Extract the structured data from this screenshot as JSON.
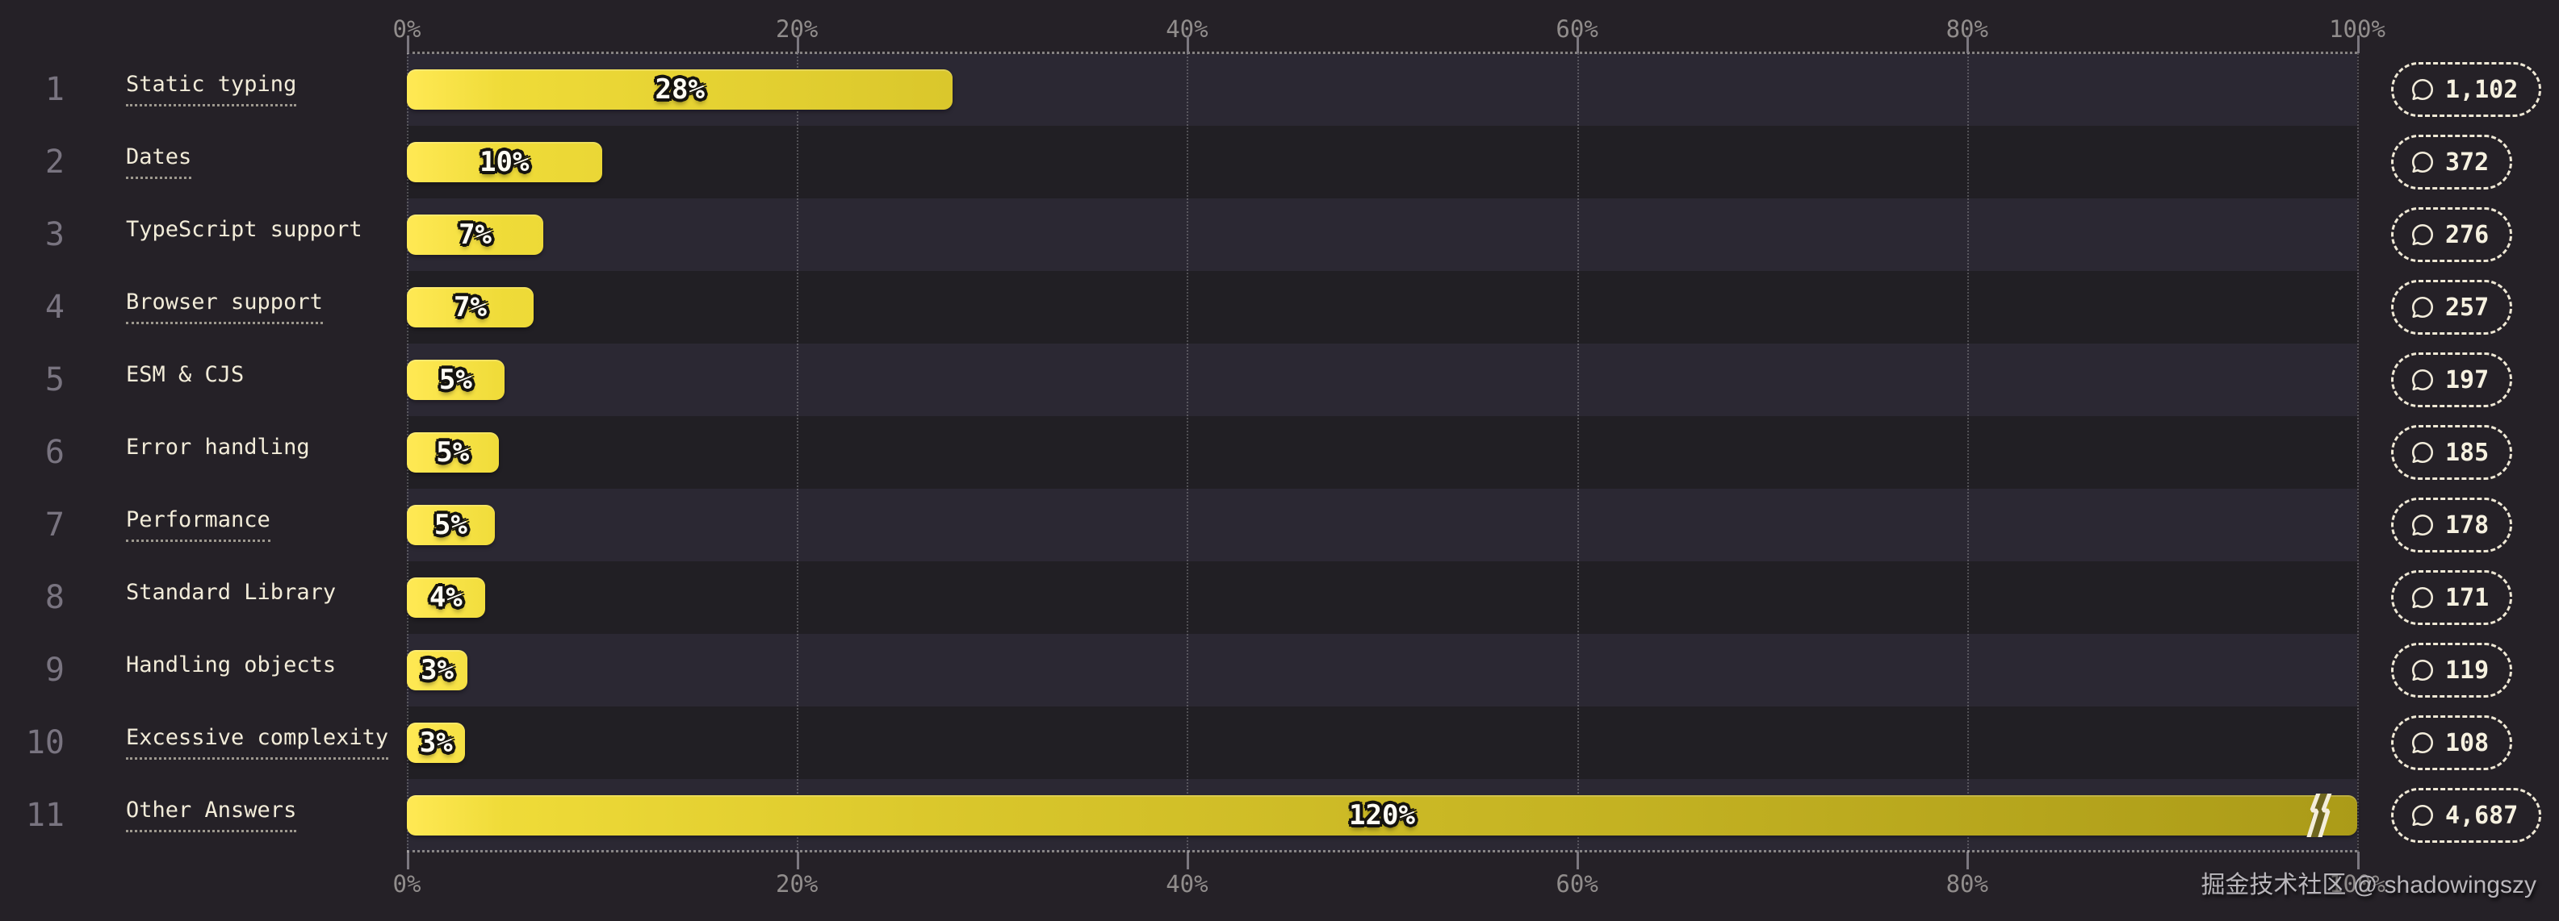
{
  "chart_data": {
    "type": "bar",
    "orientation": "horizontal",
    "title": "",
    "categories": [
      "Static typing",
      "Dates",
      "TypeScript support",
      "Browser support",
      "ESM & CJS",
      "Error handling",
      "Performance",
      "Standard Library",
      "Handling objects",
      "Excessive complexity",
      "Other Answers"
    ],
    "values": [
      28,
      10,
      7,
      7,
      5,
      5,
      5,
      4,
      3,
      3,
      120
    ],
    "value_labels": [
      "28%",
      "10%",
      "7%",
      "7%",
      "5%",
      "5%",
      "5%",
      "4%",
      "3%",
      "3%",
      "120%"
    ],
    "series": [
      {
        "name": "percentage",
        "values": [
          28,
          10,
          7,
          7,
          5,
          5,
          5,
          4,
          3,
          3,
          120
        ]
      },
      {
        "name": "respondent_count",
        "values": [
          1102,
          372,
          276,
          257,
          197,
          185,
          178,
          171,
          119,
          108,
          4687
        ]
      }
    ],
    "xlabel": "",
    "ylabel": "",
    "axis_ticks": [
      "0%",
      "20%",
      "40%",
      "60%",
      "80%",
      "100%"
    ],
    "xlim": [
      0,
      100
    ],
    "grid": "dotted vertical gridlines every 20%, dotted top and bottom axis lines",
    "legend_position": "none",
    "note": "last bar (120%) exceeds axis maximum and is truncated with a break mark"
  },
  "rows": [
    {
      "rank": "1",
      "label": "Static typing",
      "pct_label": "28%",
      "count": "1,102",
      "underlined": true,
      "bar_pct": 28,
      "truncated": false
    },
    {
      "rank": "2",
      "label": "Dates",
      "pct_label": "10%",
      "count": "372",
      "underlined": true,
      "bar_pct": 10,
      "truncated": false
    },
    {
      "rank": "3",
      "label": "TypeScript support",
      "pct_label": "7%",
      "count": "276",
      "underlined": false,
      "bar_pct": 7,
      "truncated": false
    },
    {
      "rank": "4",
      "label": "Browser support",
      "pct_label": "7%",
      "count": "257",
      "underlined": true,
      "bar_pct": 6.5,
      "truncated": false
    },
    {
      "rank": "5",
      "label": "ESM & CJS",
      "pct_label": "5%",
      "count": "197",
      "underlined": false,
      "bar_pct": 5,
      "truncated": false
    },
    {
      "rank": "6",
      "label": "Error handling",
      "pct_label": "5%",
      "count": "185",
      "underlined": false,
      "bar_pct": 4.7,
      "truncated": false
    },
    {
      "rank": "7",
      "label": "Performance",
      "pct_label": "5%",
      "count": "178",
      "underlined": true,
      "bar_pct": 4.5,
      "truncated": false
    },
    {
      "rank": "8",
      "label": "Standard Library",
      "pct_label": "4%",
      "count": "171",
      "underlined": false,
      "bar_pct": 4,
      "truncated": false
    },
    {
      "rank": "9",
      "label": "Handling objects",
      "pct_label": "3%",
      "count": "119",
      "underlined": false,
      "bar_pct": 3.1,
      "truncated": false
    },
    {
      "rank": "10",
      "label": "Excessive complexity",
      "pct_label": "3%",
      "count": "108",
      "underlined": true,
      "bar_pct": 3,
      "truncated": false
    },
    {
      "rank": "11",
      "label": "Other Answers",
      "pct_label": "120%",
      "count": "4,687",
      "underlined": true,
      "bar_pct": 100,
      "truncated": true
    }
  ],
  "axis": {
    "ticks": [
      "0%",
      "20%",
      "40%",
      "60%",
      "80%",
      "100%"
    ]
  },
  "watermark": "掘金技术社区 @ shadowingszy",
  "icons": {
    "badge_icon": "speech-bubble-icon",
    "truncation_icon": "lightning-break-icon"
  },
  "colors": {
    "background": "#252127",
    "band_light": "#2b2833",
    "band_dark": "#211f24",
    "bar_gradient_start": "#ffe954",
    "bar_gradient_end": "#ab9b18",
    "label_cream": "#f2ecd9",
    "rank_gray": "#797480",
    "axis_gray": "#918d8c",
    "badge_border": "#efe8d5",
    "pct_text": "#fffdf4",
    "watermark_gray": "#bab7bc"
  }
}
